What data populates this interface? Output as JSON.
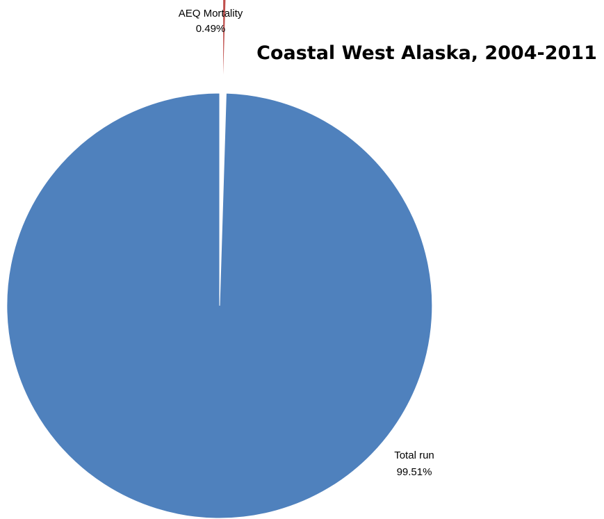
{
  "chart_data": {
    "type": "pie",
    "title": "Coastal West Alaska, 2004-2011",
    "slices": [
      {
        "label": "AEQ Mortality",
        "value": 0.49,
        "display": "0.49%",
        "color": "#C0504D",
        "exploded": true
      },
      {
        "label": "Total run",
        "value": 99.51,
        "display": "99.51%",
        "color": "#4F81BD",
        "exploded": false
      }
    ],
    "legend": "none"
  }
}
